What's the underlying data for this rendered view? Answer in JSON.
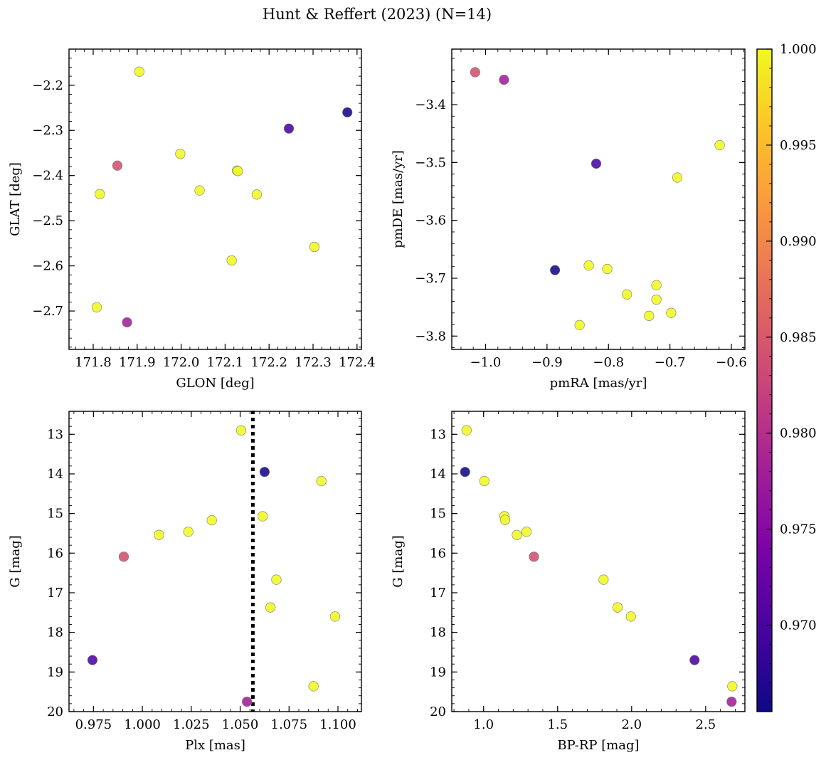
{
  "figure": {
    "title": "Hunt & Reffert (2023) (N=14)",
    "colorbar": {
      "min": 0.9655,
      "max": 1.0,
      "ticks": [
        "0.970",
        "0.975",
        "0.980",
        "0.985",
        "0.990",
        "0.995",
        "1.000"
      ],
      "tick_values": [
        0.97,
        0.975,
        0.98,
        0.985,
        0.99,
        0.995,
        1.0
      ],
      "colormap": "plasma"
    }
  },
  "chart_data": [
    {
      "type": "scatter",
      "xlabel": "GLON [deg]",
      "ylabel": "GLAT [deg]",
      "xlim": [
        171.745,
        172.41
      ],
      "ylim": [
        -2.785,
        -2.12
      ],
      "y_inverted": false,
      "xticks": [
        171.8,
        171.9,
        172.0,
        172.1,
        172.2,
        172.3,
        172.4
      ],
      "xtick_labels": [
        "171.8",
        "171.9",
        "172.0",
        "172.1",
        "172.2",
        "172.3",
        "172.4"
      ],
      "yticks": [
        -2.2,
        -2.3,
        -2.4,
        -2.5,
        -2.6,
        -2.7
      ],
      "ytick_labels": [
        "−2.2",
        "−2.3",
        "−2.4",
        "−2.5",
        "−2.6",
        "−2.7"
      ],
      "x_minor_step": 0.02,
      "y_minor_step": 0.02,
      "points": [
        {
          "x": 171.905,
          "y": -2.17,
          "c": 1.0
        },
        {
          "x": 171.815,
          "y": -2.441,
          "c": 1.0
        },
        {
          "x": 171.855,
          "y": -2.378,
          "c": 0.984
        },
        {
          "x": 171.808,
          "y": -2.692,
          "c": 1.0
        },
        {
          "x": 171.877,
          "y": -2.725,
          "c": 0.978
        },
        {
          "x": 171.998,
          "y": -2.352,
          "c": 1.0
        },
        {
          "x": 172.042,
          "y": -2.433,
          "c": 1.0
        },
        {
          "x": 172.127,
          "y": -2.389,
          "c": 1.0
        },
        {
          "x": 172.129,
          "y": -2.39,
          "c": 1.0
        },
        {
          "x": 172.172,
          "y": -2.442,
          "c": 1.0
        },
        {
          "x": 172.115,
          "y": -2.588,
          "c": 1.0
        },
        {
          "x": 172.303,
          "y": -2.558,
          "c": 1.0
        },
        {
          "x": 172.245,
          "y": -2.296,
          "c": 0.97
        },
        {
          "x": 172.378,
          "y": -2.26,
          "c": 0.966
        }
      ]
    },
    {
      "type": "scatter",
      "xlabel": "pmRA [mas/yr]",
      "ylabel": "pmDE [mas/yr]",
      "xlim": [
        -1.055,
        -0.578
      ],
      "ylim": [
        -3.823,
        -3.304
      ],
      "y_inverted": false,
      "xticks": [
        -1.0,
        -0.9,
        -0.8,
        -0.7,
        -0.6
      ],
      "xtick_labels": [
        "−1.0",
        "−0.9",
        "−0.8",
        "−0.7",
        "−0.6"
      ],
      "yticks": [
        -3.4,
        -3.5,
        -3.6,
        -3.7,
        -3.8
      ],
      "ytick_labels": [
        "−3.4",
        "−3.5",
        "−3.6",
        "−3.7",
        "−3.8"
      ],
      "x_minor_step": 0.02,
      "y_minor_step": 0.02,
      "points": [
        {
          "x": -1.017,
          "y": -3.344,
          "c": 0.984
        },
        {
          "x": -0.97,
          "y": -3.357,
          "c": 0.978
        },
        {
          "x": -0.82,
          "y": -3.502,
          "c": 0.97
        },
        {
          "x": -0.887,
          "y": -3.686,
          "c": 0.966
        },
        {
          "x": -0.832,
          "y": -3.678,
          "c": 1.0
        },
        {
          "x": -0.802,
          "y": -3.684,
          "c": 1.0
        },
        {
          "x": -0.77,
          "y": -3.728,
          "c": 1.0
        },
        {
          "x": -0.722,
          "y": -3.712,
          "c": 1.0
        },
        {
          "x": -0.722,
          "y": -3.737,
          "c": 1.0
        },
        {
          "x": -0.734,
          "y": -3.765,
          "c": 1.0
        },
        {
          "x": -0.698,
          "y": -3.76,
          "c": 1.0
        },
        {
          "x": -0.847,
          "y": -3.781,
          "c": 1.0
        },
        {
          "x": -0.688,
          "y": -3.526,
          "c": 1.0
        },
        {
          "x": -0.619,
          "y": -3.47,
          "c": 1.0
        }
      ]
    },
    {
      "type": "scatter",
      "xlabel": "Plx [mas]",
      "ylabel": "G [mag]",
      "xlim": [
        0.9625,
        1.112
      ],
      "ylim": [
        20.0,
        12.42
      ],
      "y_inverted": true,
      "xticks": [
        0.975,
        1.0,
        1.025,
        1.05,
        1.075,
        1.1
      ],
      "xtick_labels": [
        "0.975",
        "1.000",
        "1.025",
        "1.050",
        "1.075",
        "1.100"
      ],
      "yticks": [
        13,
        14,
        15,
        16,
        17,
        18,
        19,
        20
      ],
      "ytick_labels": [
        "13",
        "14",
        "15",
        "16",
        "17",
        "18",
        "19",
        "20"
      ],
      "x_minor_step": 0.005,
      "y_minor_step": 0.2,
      "vline": {
        "x": 1.0565,
        "style": "dotted"
      },
      "points": [
        {
          "x": 1.0505,
          "y": 12.9,
          "c": 1.0
        },
        {
          "x": 1.0625,
          "y": 13.95,
          "c": 0.966
        },
        {
          "x": 1.0915,
          "y": 14.18,
          "c": 1.0
        },
        {
          "x": 1.0355,
          "y": 15.17,
          "c": 1.0
        },
        {
          "x": 1.0615,
          "y": 15.07,
          "c": 1.0
        },
        {
          "x": 1.0235,
          "y": 15.46,
          "c": 1.0
        },
        {
          "x": 1.0085,
          "y": 15.54,
          "c": 1.0
        },
        {
          "x": 0.9905,
          "y": 16.09,
          "c": 0.984
        },
        {
          "x": 1.0685,
          "y": 16.67,
          "c": 1.0
        },
        {
          "x": 1.0655,
          "y": 17.37,
          "c": 1.0
        },
        {
          "x": 1.0985,
          "y": 17.6,
          "c": 1.0
        },
        {
          "x": 0.9745,
          "y": 18.7,
          "c": 0.97
        },
        {
          "x": 1.0875,
          "y": 19.36,
          "c": 1.0
        },
        {
          "x": 1.0535,
          "y": 19.75,
          "c": 0.978
        }
      ]
    },
    {
      "type": "scatter",
      "xlabel": "BP-RP [mag]",
      "ylabel": "G [mag]",
      "xlim": [
        0.785,
        2.765
      ],
      "ylim": [
        20.0,
        12.42
      ],
      "y_inverted": true,
      "xticks": [
        1.0,
        1.5,
        2.0,
        2.5
      ],
      "xtick_labels": [
        "1.0",
        "1.5",
        "2.0",
        "2.5"
      ],
      "yticks": [
        13,
        14,
        15,
        16,
        17,
        18,
        19,
        20
      ],
      "ytick_labels": [
        "13",
        "14",
        "15",
        "16",
        "17",
        "18",
        "19",
        "20"
      ],
      "x_minor_step": 0.1,
      "y_minor_step": 0.2,
      "points": [
        {
          "x": 0.885,
          "y": 12.9,
          "c": 1.0
        },
        {
          "x": 0.875,
          "y": 13.95,
          "c": 0.966
        },
        {
          "x": 1.005,
          "y": 14.18,
          "c": 1.0
        },
        {
          "x": 1.14,
          "y": 15.07,
          "c": 1.0
        },
        {
          "x": 1.145,
          "y": 15.16,
          "c": 1.0
        },
        {
          "x": 1.225,
          "y": 15.54,
          "c": 1.0
        },
        {
          "x": 1.29,
          "y": 15.46,
          "c": 1.0
        },
        {
          "x": 1.34,
          "y": 16.09,
          "c": 0.984
        },
        {
          "x": 1.81,
          "y": 16.67,
          "c": 1.0
        },
        {
          "x": 1.905,
          "y": 17.37,
          "c": 1.0
        },
        {
          "x": 1.995,
          "y": 17.6,
          "c": 1.0
        },
        {
          "x": 2.425,
          "y": 18.7,
          "c": 0.97
        },
        {
          "x": 2.68,
          "y": 19.36,
          "c": 1.0
        },
        {
          "x": 2.675,
          "y": 19.75,
          "c": 0.978
        }
      ]
    }
  ]
}
